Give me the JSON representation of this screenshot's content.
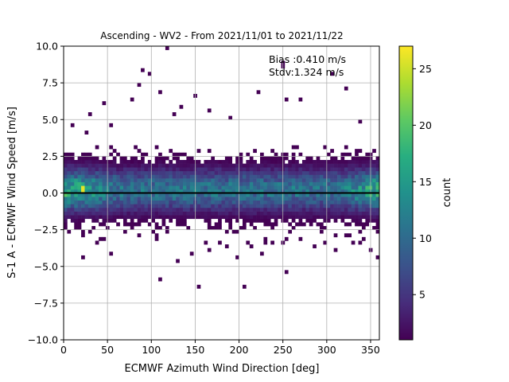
{
  "chart_data": {
    "type": "heatmap",
    "title": "Ascending - WV2 - From 2021/11/01 to 2021/11/22",
    "xlabel": "ECMWF Azimuth Wind Direction [deg]",
    "ylabel": "S-1 A - ECMWF Wind Speed [m/s]",
    "xlim": [
      0,
      360
    ],
    "ylim": [
      -10,
      10
    ],
    "x_ticks": [
      0,
      50,
      100,
      150,
      200,
      250,
      300,
      350
    ],
    "y_ticks": [
      -10.0,
      -7.5,
      -5.0,
      -2.5,
      0.0,
      2.5,
      5.0,
      7.5,
      10.0
    ],
    "x_tick_labels": [
      "0",
      "50",
      "100",
      "150",
      "200",
      "250",
      "300",
      "350"
    ],
    "y_tick_labels": [
      "−10.0",
      "−7.5",
      "−5.0",
      "−2.5",
      "0.0",
      "2.5",
      "5.0",
      "7.5",
      "10.0"
    ],
    "grid": true,
    "colormap": "viridis",
    "bin_width_deg": 4,
    "bin_height_ms": 0.25,
    "reference_line_y": 0,
    "annotation": {
      "bias": "Bias :0.410 m/s",
      "stdv": "Stdv:1.324 m/s"
    },
    "colorbar": {
      "label": "count",
      "min": 1,
      "max": 27,
      "ticks": [
        5,
        10,
        15,
        20,
        25
      ],
      "tick_labels": [
        "5",
        "10",
        "15",
        "20",
        "25"
      ]
    },
    "distribution": {
      "peak_count_near": {
        "x": 22,
        "y": 0.25
      },
      "core_y_range": [
        -2.0,
        2.25
      ],
      "high_density_x": [
        [
          0,
          60
        ],
        [
          320,
          360
        ]
      ]
    },
    "outliers": [
      [
        8,
        4.6
      ],
      [
        24,
        4.1
      ],
      [
        31,
        5.3
      ],
      [
        46,
        6.0
      ],
      [
        55,
        4.5
      ],
      [
        77,
        6.4
      ],
      [
        87,
        7.4
      ],
      [
        88,
        8.3
      ],
      [
        98,
        8.1
      ],
      [
        110,
        6.9
      ],
      [
        116,
        9.9
      ],
      [
        127,
        5.4
      ],
      [
        132,
        5.9
      ],
      [
        150,
        6.7
      ],
      [
        166,
        5.6
      ],
      [
        191,
        5.0
      ],
      [
        222,
        6.9
      ],
      [
        249,
        8.8
      ],
      [
        251,
        8.5
      ],
      [
        254,
        6.4
      ],
      [
        268,
        6.3
      ],
      [
        306,
        8.2
      ],
      [
        322,
        7.2
      ],
      [
        339,
        4.8
      ],
      [
        20,
        -4.3
      ],
      [
        42,
        -3.1
      ],
      [
        55,
        -4.2
      ],
      [
        110,
        -5.8
      ],
      [
        128,
        -4.6
      ],
      [
        152,
        -6.5
      ],
      [
        184,
        -3.6
      ],
      [
        197,
        -4.4
      ],
      [
        206,
        -6.5
      ],
      [
        214,
        -3.7
      ],
      [
        226,
        -4.2
      ],
      [
        249,
        -3.5
      ],
      [
        253,
        -5.3
      ],
      [
        271,
        -3.2
      ],
      [
        285,
        -3.6
      ],
      [
        310,
        -3.9
      ],
      [
        340,
        -3.2
      ],
      [
        349,
        -3.9
      ],
      [
        356,
        -4.5
      ],
      [
        146,
        -4.1
      ],
      [
        166,
        -3.8
      ],
      [
        230,
        -3.3
      ]
    ]
  }
}
